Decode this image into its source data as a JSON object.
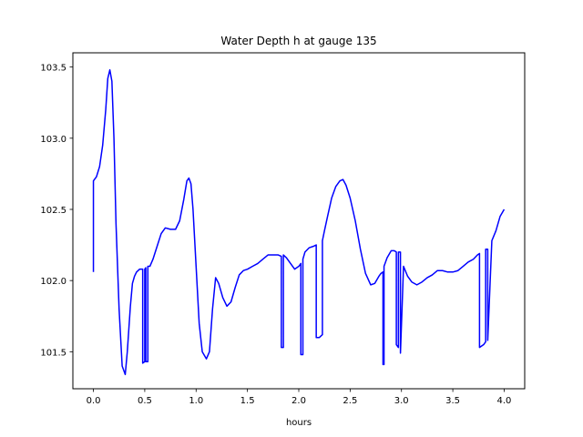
{
  "chart_data": {
    "type": "line",
    "title": "Water Depth h at gauge 135",
    "xlabel": "hours",
    "ylabel": "",
    "xlim": [
      -0.2,
      4.2
    ],
    "ylim": [
      101.24,
      103.6
    ],
    "xticks": [
      0.0,
      0.5,
      1.0,
      1.5,
      2.0,
      2.5,
      3.0,
      3.5,
      4.0
    ],
    "xtick_labels": [
      "0.0",
      "0.5",
      "1.0",
      "1.5",
      "2.0",
      "2.5",
      "3.0",
      "3.5",
      "4.0"
    ],
    "yticks": [
      101.5,
      102.0,
      102.5,
      103.0,
      103.5
    ],
    "ytick_labels": [
      "101.5",
      "102.0",
      "102.5",
      "103.0",
      "103.5"
    ],
    "grid": false,
    "series": [
      {
        "name": "",
        "color": "#0000ff",
        "x": [
          0.0,
          0.0,
          0.03,
          0.06,
          0.09,
          0.12,
          0.14,
          0.16,
          0.18,
          0.2,
          0.22,
          0.25,
          0.28,
          0.31,
          0.33,
          0.36,
          0.38,
          0.4,
          0.42,
          0.45,
          0.48,
          0.48,
          0.5,
          0.5,
          0.51,
          0.51,
          0.53,
          0.53,
          0.55,
          0.58,
          0.62,
          0.66,
          0.7,
          0.75,
          0.8,
          0.84,
          0.88,
          0.91,
          0.93,
          0.95,
          0.97,
          1.0,
          1.03,
          1.06,
          1.1,
          1.13,
          1.16,
          1.19,
          1.22,
          1.26,
          1.3,
          1.34,
          1.38,
          1.42,
          1.46,
          1.5,
          1.55,
          1.6,
          1.65,
          1.7,
          1.75,
          1.8,
          1.83,
          1.83,
          1.85,
          1.85,
          1.88,
          1.92,
          1.96,
          2.0,
          2.02,
          2.02,
          2.04,
          2.04,
          2.06,
          2.1,
          2.14,
          2.17,
          2.17,
          2.2,
          2.23,
          2.23,
          2.25,
          2.28,
          2.32,
          2.36,
          2.4,
          2.43,
          2.46,
          2.5,
          2.55,
          2.6,
          2.65,
          2.7,
          2.74,
          2.78,
          2.8,
          2.82,
          2.82,
          2.83,
          2.83,
          2.86,
          2.9,
          2.93,
          2.95,
          2.95,
          2.97,
          2.97,
          2.99,
          2.99,
          3.02,
          3.06,
          3.1,
          3.15,
          3.2,
          3.25,
          3.3,
          3.35,
          3.4,
          3.45,
          3.5,
          3.55,
          3.6,
          3.65,
          3.7,
          3.74,
          3.76,
          3.76,
          3.8,
          3.82,
          3.82,
          3.84,
          3.84,
          3.88,
          3.92,
          3.96,
          4.0
        ],
        "values": [
          102.06,
          102.7,
          102.73,
          102.8,
          102.95,
          103.2,
          103.42,
          103.48,
          103.4,
          103.0,
          102.4,
          101.8,
          101.4,
          101.34,
          101.5,
          101.82,
          101.98,
          102.03,
          102.06,
          102.08,
          102.08,
          101.42,
          101.43,
          102.08,
          102.09,
          101.43,
          101.43,
          102.1,
          102.1,
          102.15,
          102.24,
          102.33,
          102.37,
          102.36,
          102.36,
          102.42,
          102.57,
          102.7,
          102.72,
          102.68,
          102.5,
          102.1,
          101.7,
          101.5,
          101.45,
          101.5,
          101.8,
          102.02,
          101.98,
          101.88,
          101.82,
          101.85,
          101.95,
          102.04,
          102.07,
          102.08,
          102.1,
          102.12,
          102.15,
          102.18,
          102.18,
          102.18,
          102.17,
          101.53,
          101.53,
          102.18,
          102.16,
          102.12,
          102.08,
          102.1,
          102.12,
          101.48,
          101.48,
          102.15,
          102.2,
          102.23,
          102.24,
          102.25,
          101.6,
          101.6,
          101.62,
          102.28,
          102.35,
          102.45,
          102.58,
          102.66,
          102.7,
          102.71,
          102.67,
          102.58,
          102.42,
          102.22,
          102.05,
          101.97,
          101.98,
          102.03,
          102.05,
          102.06,
          101.41,
          101.41,
          102.1,
          102.16,
          102.21,
          102.21,
          102.2,
          101.55,
          101.53,
          102.2,
          102.2,
          101.49,
          102.1,
          102.03,
          101.99,
          101.97,
          101.99,
          102.02,
          102.04,
          102.07,
          102.07,
          102.06,
          102.06,
          102.07,
          102.1,
          102.13,
          102.15,
          102.18,
          102.19,
          101.53,
          101.55,
          101.57,
          102.22,
          102.22,
          101.58,
          102.28,
          102.35,
          102.45,
          102.5
        ]
      }
    ]
  }
}
